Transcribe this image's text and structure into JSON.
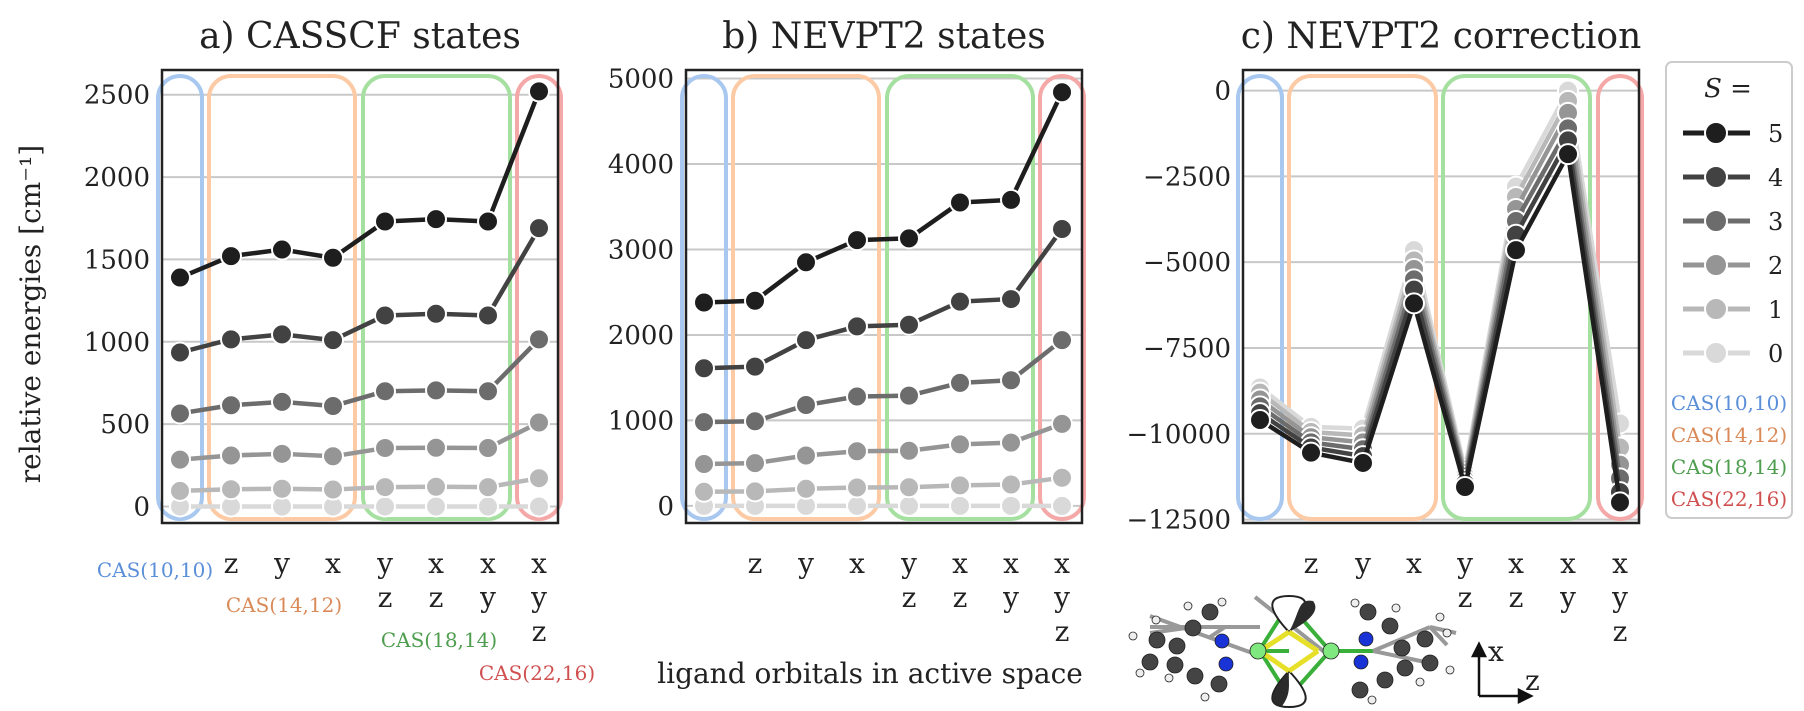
{
  "colors": {
    "s5": "#1e1e1e",
    "s4": "#424242",
    "s3": "#6c6c6c",
    "s2": "#959595",
    "s1": "#b8b8b8",
    "s0": "#d9d9d9",
    "cas1": "#a8c8f0",
    "cas2": "#fccaa4",
    "cas3": "#a6e0a1",
    "cas4": "#f5a8a8",
    "cas1_text": "#5b8fd8",
    "cas2_text": "#d98a58",
    "cas3_text": "#4f9e4f",
    "cas4_text": "#d05050",
    "grid": "#c8c8c8",
    "axis": "#222222"
  },
  "ylabel": "relative energies [cm⁻¹]",
  "xlabel": "ligand orbitals in active space",
  "cas_labels": [
    "CAS(10,10)",
    "CAS(14,12)",
    "CAS(18,14)",
    "CAS(22,16)"
  ],
  "ligand_columns": [
    [],
    [
      "z"
    ],
    [
      "y"
    ],
    [
      "x"
    ],
    [
      "y",
      "z"
    ],
    [
      "x",
      "z"
    ],
    [
      "x",
      "y"
    ],
    [
      "x",
      "y",
      "z"
    ]
  ],
  "axis_labels": {
    "x": "x",
    "z": "z"
  },
  "legend": {
    "title": "S =",
    "entries": [
      "5",
      "4",
      "3",
      "2",
      "1",
      "0"
    ]
  },
  "chart_data": [
    {
      "type": "line",
      "title": "a) CASSCF states",
      "ylim": [
        -100,
        2650
      ],
      "yticks": [
        0,
        500,
        1000,
        1500,
        2000,
        2500
      ],
      "ytick_labels": [
        "0",
        "500",
        "1000",
        "1500",
        "2000",
        "2500"
      ],
      "series": [
        {
          "name": "5",
          "values": [
            1390,
            1520,
            1560,
            1510,
            1730,
            1745,
            1730,
            2520
          ]
        },
        {
          "name": "4",
          "values": [
            935,
            1015,
            1045,
            1010,
            1160,
            1170,
            1160,
            1690
          ]
        },
        {
          "name": "3",
          "values": [
            565,
            615,
            635,
            610,
            700,
            705,
            700,
            1015
          ]
        },
        {
          "name": "2",
          "values": [
            285,
            310,
            320,
            305,
            355,
            357,
            355,
            510
          ]
        },
        {
          "name": "1",
          "values": [
            95,
            105,
            108,
            103,
            118,
            120,
            118,
            172
          ]
        },
        {
          "name": "0",
          "values": [
            0,
            0,
            0,
            0,
            0,
            0,
            0,
            0
          ]
        }
      ]
    },
    {
      "type": "line",
      "title": "b) NEVPT2 states",
      "ylim": [
        -200,
        5100
      ],
      "yticks": [
        0,
        1000,
        2000,
        3000,
        4000,
        5000
      ],
      "ytick_labels": [
        "0",
        "1000",
        "2000",
        "3000",
        "4000",
        "5000"
      ],
      "series": [
        {
          "name": "5",
          "values": [
            2380,
            2400,
            2850,
            3110,
            3130,
            3550,
            3580,
            4840
          ]
        },
        {
          "name": "4",
          "values": [
            1610,
            1630,
            1940,
            2100,
            2120,
            2390,
            2420,
            3240
          ]
        },
        {
          "name": "3",
          "values": [
            980,
            990,
            1180,
            1280,
            1290,
            1440,
            1470,
            1940
          ]
        },
        {
          "name": "2",
          "values": [
            490,
            500,
            590,
            640,
            645,
            720,
            740,
            960
          ]
        },
        {
          "name": "1",
          "values": [
            165,
            170,
            200,
            215,
            218,
            240,
            250,
            330
          ]
        },
        {
          "name": "0",
          "values": [
            0,
            0,
            0,
            0,
            0,
            0,
            0,
            0
          ]
        }
      ]
    },
    {
      "type": "line",
      "title": "c) NEVPT2 correction",
      "ylim": [
        -12600,
        600
      ],
      "yticks": [
        0,
        -2500,
        -5000,
        -7500,
        -10000,
        -12500
      ],
      "ytick_labels": [
        "0",
        "−2500",
        "−5000",
        "−7500",
        "−10000",
        "−12500"
      ],
      "series": [
        {
          "name": "5",
          "values": [
            -9600,
            -10550,
            -10850,
            -6200,
            -11550,
            -4650,
            -1850,
            -12000
          ]
        },
        {
          "name": "4",
          "values": [
            -9400,
            -10400,
            -10650,
            -5800,
            -11450,
            -4200,
            -1450,
            -11700
          ]
        },
        {
          "name": "3",
          "values": [
            -9200,
            -10250,
            -10450,
            -5500,
            -11350,
            -3800,
            -1100,
            -11300
          ]
        },
        {
          "name": "2",
          "values": [
            -9000,
            -10100,
            -10250,
            -5200,
            -11250,
            -3450,
            -650,
            -10900
          ]
        },
        {
          "name": "1",
          "values": [
            -8800,
            -9950,
            -10050,
            -4950,
            -11150,
            -3100,
            -300,
            -10400
          ]
        },
        {
          "name": "0",
          "values": [
            -8650,
            -9800,
            -9850,
            -4650,
            -11050,
            -2800,
            0,
            -9700
          ]
        }
      ]
    }
  ]
}
